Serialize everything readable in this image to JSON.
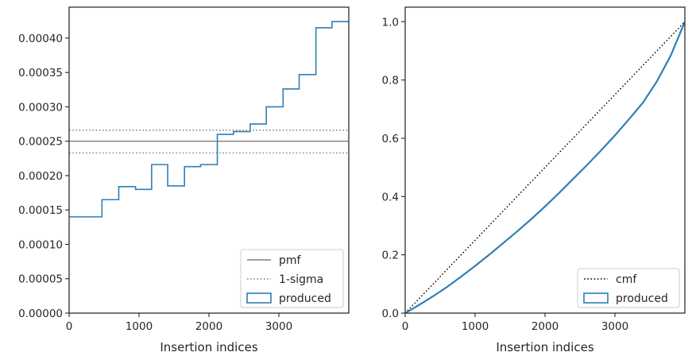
{
  "chart_data": [
    {
      "type": "line",
      "xlabel": "Insertion indices",
      "ylabel": "",
      "xlim": [
        0,
        4000
      ],
      "ylim": [
        0,
        0.000445
      ],
      "xticks": [
        0,
        1000,
        2000,
        3000
      ],
      "xtick_labels": [
        "0",
        "1000",
        "2000",
        "3000"
      ],
      "yticks": [
        0,
        5e-05,
        0.0001,
        0.00015,
        0.0002,
        0.00025,
        0.0003,
        0.00035,
        0.0004
      ],
      "ytick_labels": [
        "0.00000",
        "0.00005",
        "0.00010",
        "0.00015",
        "0.00020",
        "0.00025",
        "0.00030",
        "0.00035",
        "0.00040"
      ],
      "grid": false,
      "legend_position": "bottom-right",
      "series": [
        {
          "name": "pmf",
          "kind": "hline",
          "y": 0.00025,
          "color": "#808080",
          "dash": "solid"
        },
        {
          "name": "1-sigma",
          "kind": "hlines",
          "y": [
            0.000266,
            0.000233
          ],
          "color": "#808080",
          "dash": "dotted"
        },
        {
          "name": "produced",
          "kind": "step-histogram",
          "color": "#2f7fb5",
          "edges": [
            0,
            470,
            710,
            950,
            1180,
            1410,
            1650,
            1880,
            2120,
            2350,
            2590,
            2820,
            3060,
            3290,
            3530,
            3760,
            4000
          ],
          "values": [
            0.00014,
            0.000165,
            0.000184,
            0.00018,
            0.000216,
            0.000185,
            0.000213,
            0.000216,
            0.00026,
            0.000264,
            0.000275,
            0.0003,
            0.000326,
            0.000347,
            0.000415,
            0.000424
          ]
        }
      ]
    },
    {
      "type": "line",
      "xlabel": "Insertion indices",
      "ylabel": "",
      "xlim": [
        0,
        4000
      ],
      "ylim": [
        0,
        1.05
      ],
      "xticks": [
        0,
        1000,
        2000,
        3000
      ],
      "xtick_labels": [
        "0",
        "1000",
        "2000",
        "3000"
      ],
      "yticks": [
        0,
        0.2,
        0.4,
        0.6,
        0.8,
        1.0
      ],
      "ytick_labels": [
        "0.0",
        "0.2",
        "0.4",
        "0.6",
        "0.8",
        "1.0"
      ],
      "grid": false,
      "legend_position": "bottom-right",
      "series": [
        {
          "name": "cmf",
          "kind": "line",
          "color": "#000000",
          "dash": "dotted",
          "x": [
            0,
            4000
          ],
          "y": [
            0,
            1.0
          ]
        },
        {
          "name": "produced",
          "kind": "cumulative",
          "color": "#2f7fb5",
          "x": [
            0,
            200,
            400,
            600,
            800,
            1000,
            1200,
            1400,
            1600,
            1800,
            2000,
            2200,
            2400,
            2600,
            2800,
            3000,
            3200,
            3400,
            3600,
            3800,
            4000
          ],
          "y": [
            0,
            0.028,
            0.058,
            0.09,
            0.125,
            0.162,
            0.2,
            0.24,
            0.28,
            0.322,
            0.366,
            0.412,
            0.46,
            0.508,
            0.558,
            0.61,
            0.665,
            0.722,
            0.795,
            0.885,
            1.0
          ]
        }
      ]
    }
  ]
}
